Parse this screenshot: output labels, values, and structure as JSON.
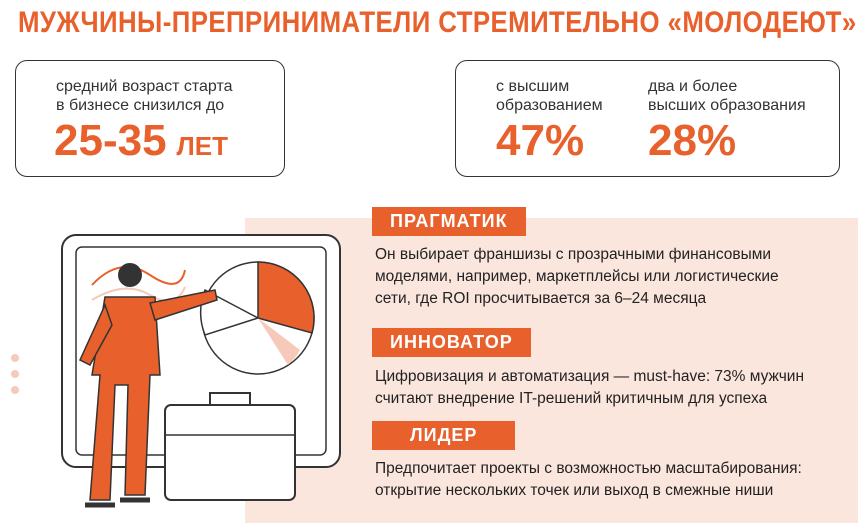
{
  "title": "МУЖЧИНЫ-ПРЕПРИНИМАТЕЛИ СТРЕМИТЕЛЬНО «МОЛОДЕЮТ»",
  "stat_age": {
    "lines": [
      "средний возраст старта",
      "в бизнесе снизился до"
    ],
    "value": "25-35",
    "unit": "ЛЕТ"
  },
  "stat_education": [
    {
      "lines": [
        "с высшим",
        "образованием"
      ],
      "value": "47%"
    },
    {
      "lines": [
        "два и более",
        "высших образования"
      ],
      "value": "28%"
    }
  ],
  "sections": [
    {
      "heading": "ПРАГМАТИК",
      "lines": [
        "Он выбирает франшизы с прозрачными финансовыми",
        "моделями, например, маркетплейсы или логистические",
        "сети, где ROI просчитывается за 6–24 месяца"
      ]
    },
    {
      "heading": "ИННОВАТОР",
      "lines": [
        "Цифровизация и автоматизация — must-have: 73% мужчин",
        "считают внедрение IT-решений критичным для успеха"
      ]
    },
    {
      "heading": "ЛИДЕР",
      "lines": [
        "Предпочитает проекты с возможностью масштабирования:",
        "открытие нескольких точек или выход в смежные ниши"
      ]
    }
  ]
}
